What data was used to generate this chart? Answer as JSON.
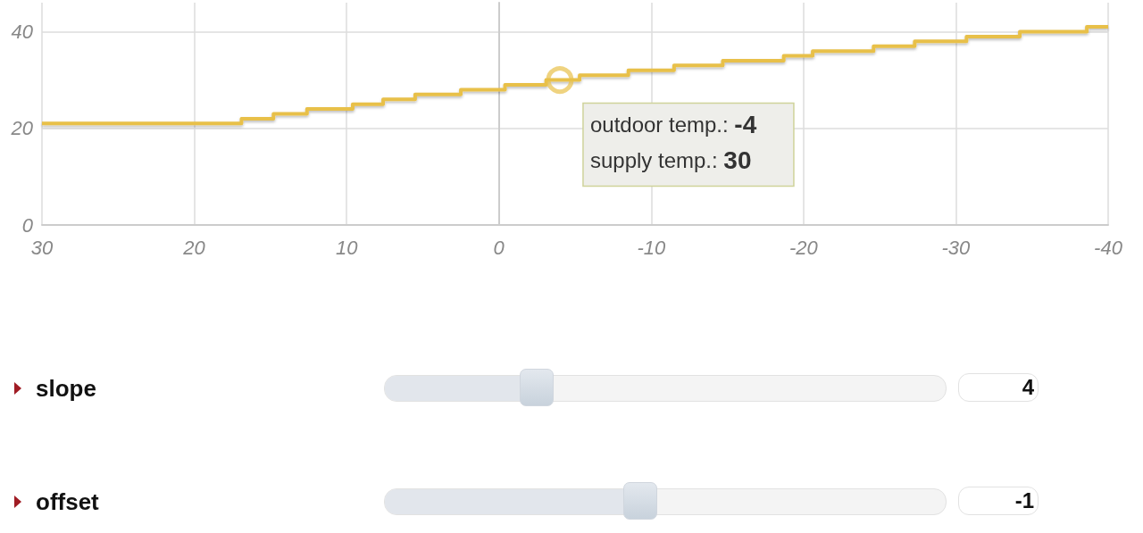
{
  "chart_data": {
    "type": "step",
    "x": [
      30,
      16.9,
      14.8,
      12.6,
      9.6,
      7.6,
      5.5,
      2.5,
      -0.4,
      -3.1,
      -5.3,
      -8.5,
      -11.5,
      -14.7,
      -18.7,
      -20.6,
      -24.6,
      -27.3,
      -30.7,
      -34.2,
      -38.6,
      -40
    ],
    "series": [
      {
        "color": "#e8c04a",
        "values": [
          21,
          22,
          23,
          24,
          25,
          26,
          27,
          28,
          29,
          30,
          31,
          32,
          33,
          34,
          35,
          36,
          37,
          38,
          39,
          40,
          41,
          41
        ]
      }
    ],
    "xlim": [
      30,
      -40
    ],
    "xticks": [
      30,
      20,
      10,
      0,
      -10,
      -20,
      -30,
      -40
    ],
    "ylim": [
      0,
      46
    ],
    "yticks": [
      0,
      20,
      40
    ],
    "grid": true,
    "marker": "none",
    "annotations": [
      {
        "text": "outdoor temp.: -4",
        "x": -4,
        "y": 30
      },
      "supply temp.: 30",
      "slope",
      "4",
      "offset",
      "-1"
    ]
  }
}
